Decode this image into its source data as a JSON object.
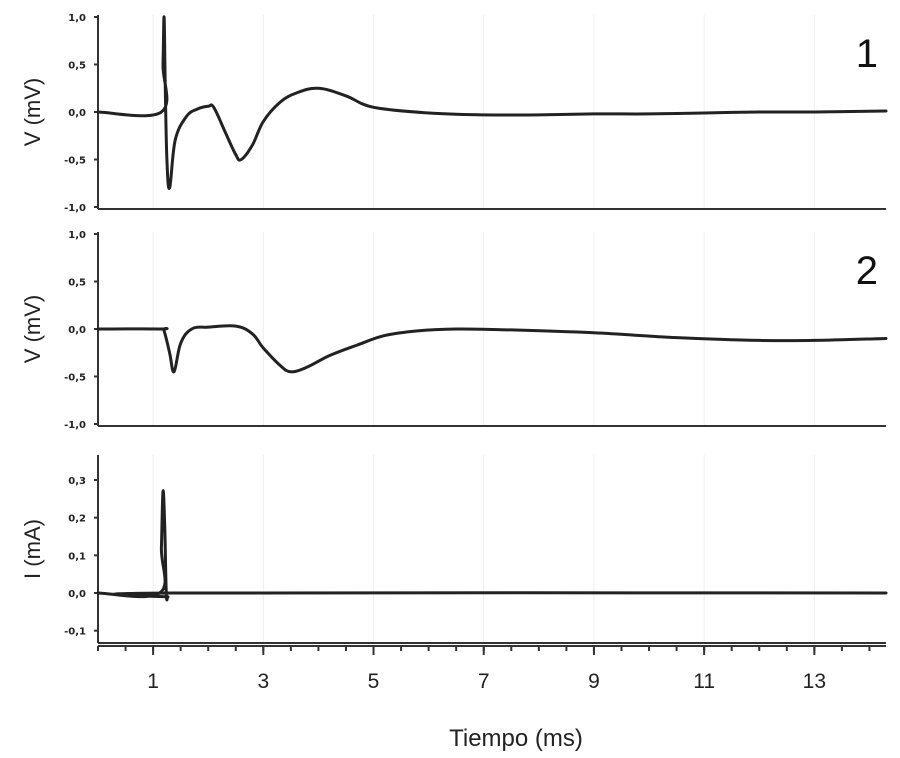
{
  "chart_data": [
    {
      "type": "line",
      "panel_label": "1",
      "ylabel": "V (mV)",
      "ylim": [
        -1.0,
        1.0
      ],
      "yticks": [
        "1,0",
        "0,5",
        "0,0",
        "-0,5",
        "-1,0"
      ],
      "ytick_values": [
        1.0,
        0.5,
        0.0,
        -0.5,
        -1.0
      ],
      "series": [
        {
          "x": [
            0,
            1.15,
            1.18,
            1.2,
            1.22,
            1.25,
            1.3,
            1.4,
            1.6,
            1.8,
            2.0,
            2.1,
            2.3,
            2.5,
            2.6,
            2.8,
            3.0,
            3.3,
            3.6,
            4.0,
            4.5,
            5.0,
            6.0,
            7.0,
            8.0,
            9.0,
            10.0,
            11.0,
            12.0,
            13.0,
            14.3
          ],
          "y": [
            0,
            0,
            0.5,
            1.0,
            0.3,
            -0.5,
            -0.8,
            -0.3,
            -0.05,
            0.03,
            0.06,
            0.05,
            -0.2,
            -0.45,
            -0.5,
            -0.35,
            -0.1,
            0.1,
            0.2,
            0.25,
            0.17,
            0.05,
            -0.01,
            -0.03,
            -0.03,
            -0.02,
            -0.02,
            -0.01,
            0,
            0,
            0.01
          ]
        }
      ]
    },
    {
      "type": "line",
      "panel_label": "2",
      "ylabel": "V (mV)",
      "ylim": [
        -1.0,
        1.0
      ],
      "yticks": [
        "1,0",
        "0,5",
        "0,0",
        "-0,5",
        "-1,0"
      ],
      "ytick_values": [
        1.0,
        0.5,
        0.0,
        -0.5,
        -1.0
      ],
      "series": [
        {
          "x": [
            0,
            1.15,
            1.2,
            1.3,
            1.38,
            1.5,
            1.7,
            2.0,
            2.5,
            2.8,
            3.0,
            3.3,
            3.5,
            3.8,
            4.2,
            4.7,
            5.2,
            5.8,
            6.5,
            7.5,
            9.0,
            10.5,
            12.0,
            13.0,
            14.3
          ],
          "y": [
            0,
            0,
            -0.02,
            -0.25,
            -0.45,
            -0.15,
            0.0,
            0.02,
            0.03,
            -0.05,
            -0.2,
            -0.38,
            -0.45,
            -0.4,
            -0.28,
            -0.17,
            -0.07,
            -0.02,
            0.0,
            -0.01,
            -0.04,
            -0.09,
            -0.12,
            -0.12,
            -0.1
          ]
        }
      ]
    },
    {
      "type": "line",
      "ylabel": "I (mA)",
      "ylim": [
        -0.15,
        0.35
      ],
      "yticks": [
        "0,3",
        "0,2",
        "0,1",
        "0,0",
        "-0,1"
      ],
      "ytick_values": [
        0.3,
        0.2,
        0.1,
        0.0,
        -0.1
      ],
      "series": [
        {
          "x": [
            0,
            1.12,
            1.15,
            1.18,
            1.21,
            1.24,
            1.27,
            1.35,
            14.3
          ],
          "y": [
            0,
            0,
            0.12,
            0.27,
            0.18,
            0.0,
            -0.01,
            0,
            0
          ]
        }
      ]
    }
  ],
  "x_axis": {
    "xlabel": "Tiempo (ms)",
    "xlim": [
      0,
      14.3
    ],
    "xticks": [
      1,
      3,
      5,
      7,
      9,
      11,
      13
    ],
    "xtick_labels": [
      "1",
      "3",
      "5",
      "7",
      "9",
      "11",
      "13"
    ]
  }
}
